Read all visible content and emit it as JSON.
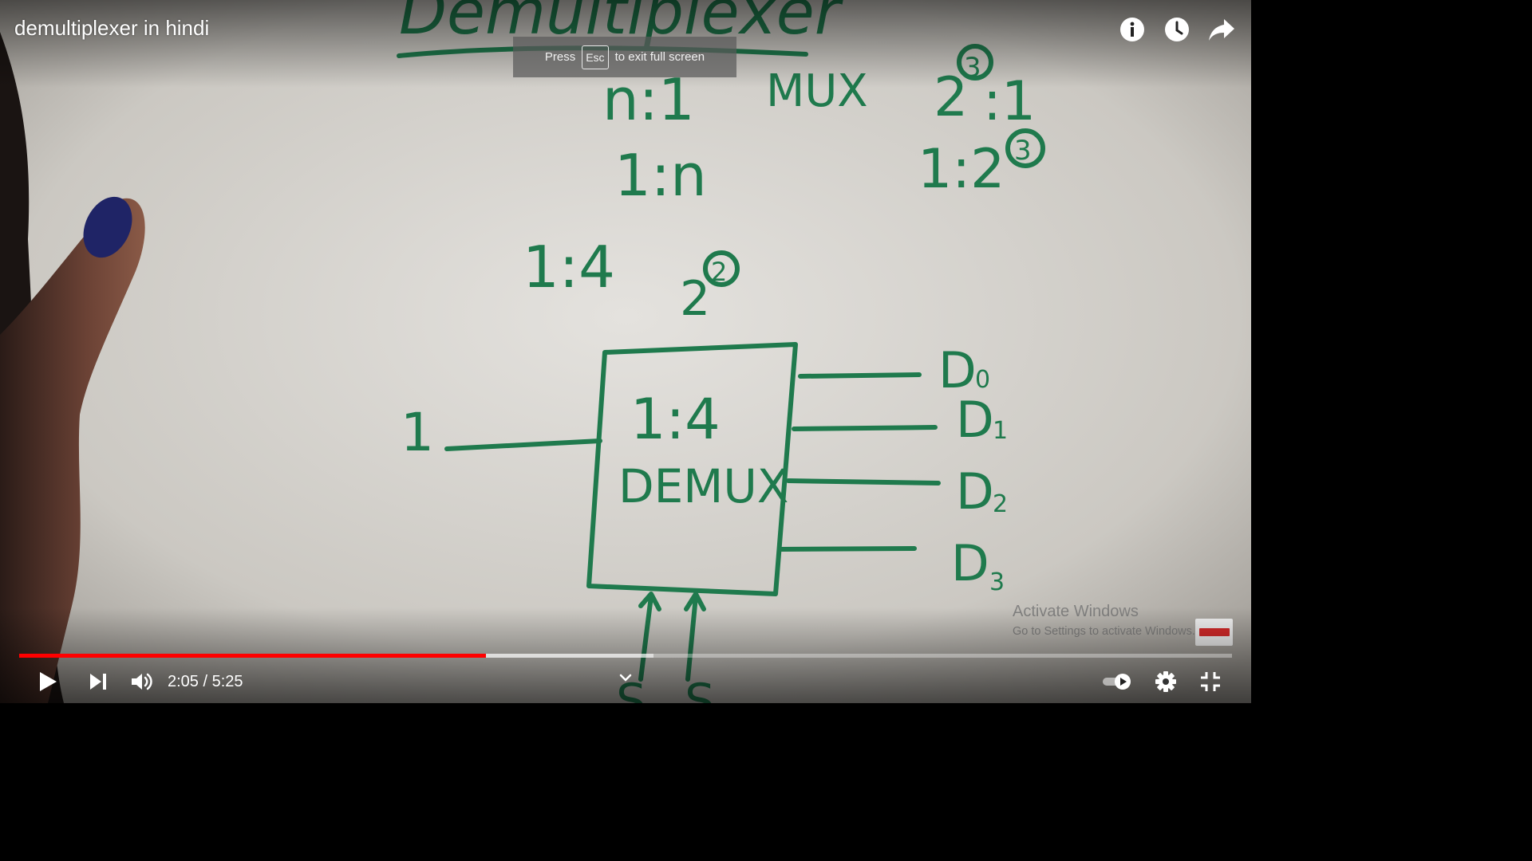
{
  "player": {
    "title": "demultiplexer in hindi",
    "esc_notice": {
      "before": "Press",
      "key": "Esc",
      "after": "to exit full screen"
    },
    "time": {
      "current": "2:05",
      "separator": " / ",
      "duration": "5:25"
    },
    "progress": {
      "played_fraction": 0.385,
      "buffered_fraction": 0.523
    },
    "icons": {
      "info": "info-icon",
      "watch_later": "clock-icon",
      "share": "share-icon",
      "play": "play-icon",
      "next": "skip-next-icon",
      "volume": "volume-icon",
      "autoplay": "autoplay-toggle-icon",
      "settings": "gear-icon",
      "exit_fullscreen": "exit-fullscreen-icon"
    },
    "colors": {
      "progress_played": "#ff0000",
      "marker_ink": "#1f7a4d",
      "whiteboard": "#cfcdc8"
    }
  },
  "watermark": {
    "title": "Activate Windows",
    "subtitle": "Go to Settings to activate Windows."
  },
  "whiteboard": {
    "heading": "Demultiplexer",
    "lines": [
      "n:1",
      "MUX",
      "2",
      "3",
      ":1",
      "1:n",
      "1:2",
      "3",
      "1:4",
      "2",
      "2"
    ],
    "block_ratio": "1:4",
    "block_label": "DEMUX",
    "input_label": "1",
    "outputs": [
      "D",
      "D",
      "D",
      "D"
    ],
    "output_subscripts": [
      "0",
      "1",
      "2",
      "3"
    ],
    "select_label": "S"
  }
}
